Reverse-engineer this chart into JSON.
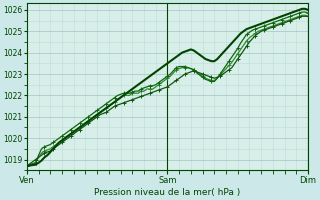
{
  "title": "",
  "xlabel": "Pression niveau de la mer( hPa )",
  "bg_color": "#cce8e8",
  "plot_bg": "#d8eee8",
  "grid_color_major": "#aacccc",
  "grid_color_minor": "#bbdddd",
  "line_colors": [
    "#006622",
    "#006622",
    "#226622",
    "#004400"
  ],
  "ylim": [
    1018.5,
    1026.3
  ],
  "yticks": [
    1019,
    1020,
    1021,
    1022,
    1023,
    1024,
    1025,
    1026
  ],
  "xtick_labels": [
    "Ven",
    "Sam",
    "Dim"
  ],
  "xtick_positions": [
    0,
    48,
    96
  ],
  "total_points": 97,
  "series": [
    [
      1018.7,
      1018.72,
      1018.74,
      1018.76,
      1018.85,
      1018.95,
      1019.1,
      1019.2,
      1019.35,
      1019.5,
      1019.65,
      1019.8,
      1019.9,
      1020.0,
      1020.1,
      1020.2,
      1020.3,
      1020.4,
      1020.5,
      1020.6,
      1020.7,
      1020.8,
      1020.9,
      1021.0,
      1021.1,
      1021.2,
      1021.3,
      1021.4,
      1021.5,
      1021.6,
      1021.7,
      1021.8,
      1021.9,
      1022.0,
      1022.1,
      1022.2,
      1022.3,
      1022.4,
      1022.5,
      1022.6,
      1022.7,
      1022.8,
      1022.9,
      1023.0,
      1023.1,
      1023.2,
      1023.3,
      1023.4,
      1023.5,
      1023.6,
      1023.7,
      1023.8,
      1023.9,
      1024.0,
      1024.05,
      1024.1,
      1024.15,
      1024.1,
      1024.0,
      1023.9,
      1023.8,
      1023.7,
      1023.65,
      1023.6,
      1023.6,
      1023.7,
      1023.85,
      1024.0,
      1024.15,
      1024.3,
      1024.45,
      1024.6,
      1024.75,
      1024.9,
      1025.0,
      1025.1,
      1025.15,
      1025.2,
      1025.25,
      1025.3,
      1025.35,
      1025.4,
      1025.45,
      1025.5,
      1025.55,
      1025.6,
      1025.65,
      1025.7,
      1025.75,
      1025.8,
      1025.85,
      1025.9,
      1025.95,
      1026.0,
      1026.05,
      1026.05,
      1026.0
    ],
    [
      1018.7,
      1018.75,
      1018.8,
      1018.85,
      1019.2,
      1019.5,
      1019.6,
      1019.65,
      1019.7,
      1019.8,
      1019.9,
      1020.0,
      1020.1,
      1020.2,
      1020.3,
      1020.4,
      1020.5,
      1020.6,
      1020.7,
      1020.8,
      1020.9,
      1021.0,
      1021.1,
      1021.2,
      1021.3,
      1021.4,
      1021.5,
      1021.6,
      1021.7,
      1021.8,
      1021.9,
      1022.0,
      1022.05,
      1022.1,
      1022.1,
      1022.1,
      1022.15,
      1022.2,
      1022.2,
      1022.3,
      1022.35,
      1022.4,
      1022.45,
      1022.45,
      1022.5,
      1022.6,
      1022.7,
      1022.8,
      1022.9,
      1023.0,
      1023.15,
      1023.3,
      1023.35,
      1023.35,
      1023.35,
      1023.3,
      1023.25,
      1023.2,
      1023.05,
      1022.95,
      1022.85,
      1022.75,
      1022.7,
      1022.65,
      1022.65,
      1022.8,
      1023.0,
      1023.2,
      1023.4,
      1023.6,
      1023.8,
      1024.0,
      1024.2,
      1024.45,
      1024.65,
      1024.85,
      1024.95,
      1025.05,
      1025.1,
      1025.15,
      1025.2,
      1025.25,
      1025.3,
      1025.35,
      1025.4,
      1025.45,
      1025.5,
      1025.55,
      1025.6,
      1025.65,
      1025.7,
      1025.75,
      1025.8,
      1025.85,
      1025.9,
      1025.9,
      1025.85
    ],
    [
      1018.7,
      1018.75,
      1018.8,
      1018.85,
      1019.1,
      1019.3,
      1019.4,
      1019.45,
      1019.5,
      1019.6,
      1019.7,
      1019.8,
      1019.9,
      1020.0,
      1020.1,
      1020.2,
      1020.3,
      1020.4,
      1020.5,
      1020.6,
      1020.7,
      1020.8,
      1020.9,
      1021.0,
      1021.1,
      1021.2,
      1021.3,
      1021.4,
      1021.5,
      1021.6,
      1021.7,
      1021.8,
      1021.9,
      1022.0,
      1022.0,
      1022.0,
      1022.1,
      1022.1,
      1022.1,
      1022.2,
      1022.2,
      1022.3,
      1022.3,
      1022.3,
      1022.4,
      1022.5,
      1022.6,
      1022.7,
      1022.8,
      1022.9,
      1023.05,
      1023.2,
      1023.25,
      1023.3,
      1023.3,
      1023.3,
      1023.25,
      1023.2,
      1023.1,
      1023.0,
      1022.9,
      1022.8,
      1022.75,
      1022.7,
      1022.7,
      1022.8,
      1022.95,
      1023.1,
      1023.25,
      1023.4,
      1023.55,
      1023.75,
      1023.95,
      1024.15,
      1024.35,
      1024.55,
      1024.7,
      1024.8,
      1024.9,
      1025.0,
      1025.05,
      1025.1,
      1025.15,
      1025.2,
      1025.25,
      1025.3,
      1025.35,
      1025.4,
      1025.45,
      1025.5,
      1025.55,
      1025.6,
      1025.65,
      1025.7,
      1025.75,
      1025.75,
      1025.7
    ],
    [
      1018.7,
      1018.8,
      1018.9,
      1019.0,
      1019.1,
      1019.2,
      1019.3,
      1019.35,
      1019.4,
      1019.5,
      1019.6,
      1019.7,
      1019.8,
      1019.9,
      1020.0,
      1020.1,
      1020.2,
      1020.3,
      1020.4,
      1020.5,
      1020.6,
      1020.7,
      1020.8,
      1020.9,
      1021.0,
      1021.1,
      1021.15,
      1021.2,
      1021.3,
      1021.4,
      1021.5,
      1021.55,
      1021.6,
      1021.65,
      1021.7,
      1021.75,
      1021.8,
      1021.85,
      1021.9,
      1021.95,
      1022.0,
      1022.05,
      1022.1,
      1022.15,
      1022.2,
      1022.25,
      1022.3,
      1022.35,
      1022.4,
      1022.5,
      1022.6,
      1022.7,
      1022.8,
      1022.9,
      1023.0,
      1023.05,
      1023.1,
      1023.15,
      1023.1,
      1023.05,
      1023.0,
      1022.95,
      1022.9,
      1022.85,
      1022.8,
      1022.85,
      1022.9,
      1023.0,
      1023.1,
      1023.2,
      1023.3,
      1023.5,
      1023.7,
      1023.9,
      1024.1,
      1024.3,
      1024.5,
      1024.65,
      1024.8,
      1024.9,
      1025.0,
      1025.05,
      1025.1,
      1025.15,
      1025.2,
      1025.25,
      1025.3,
      1025.35,
      1025.4,
      1025.45,
      1025.5,
      1025.55,
      1025.6,
      1025.65,
      1025.7,
      1025.7,
      1025.7
    ]
  ]
}
